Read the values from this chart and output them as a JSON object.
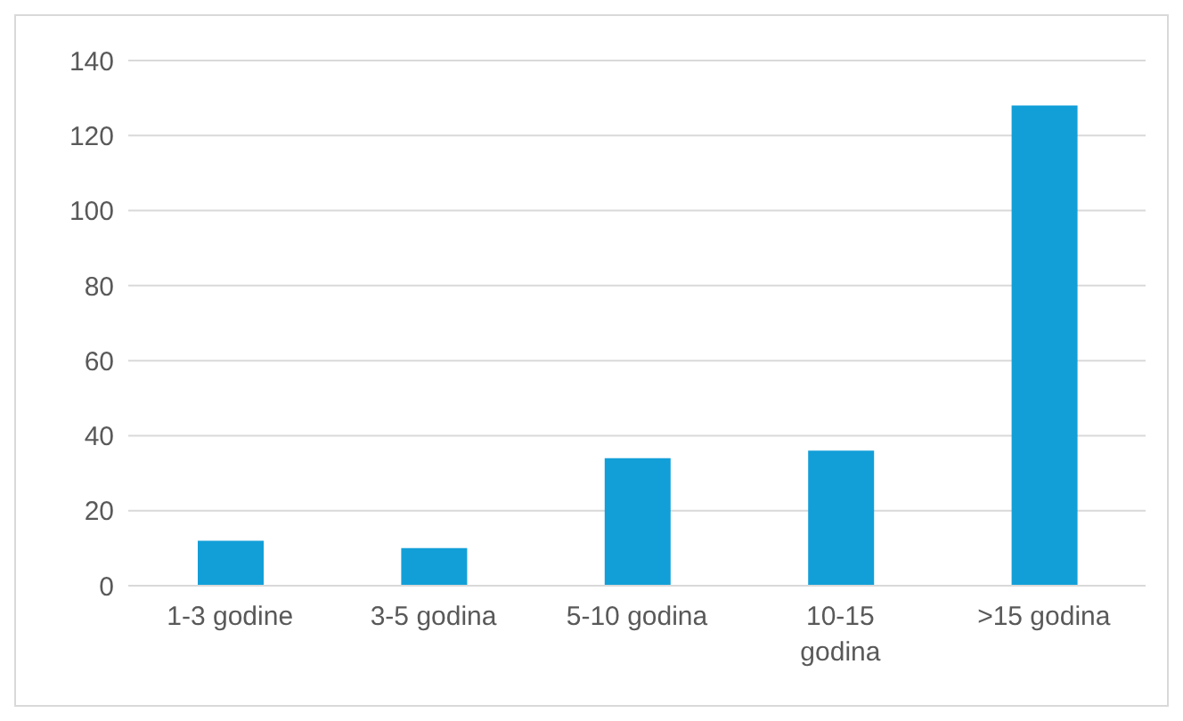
{
  "chart_data": {
    "type": "bar",
    "categories": [
      "1-3 godine",
      "3-5 godina",
      "5-10 godina",
      "10-15 godina",
      ">15 godina"
    ],
    "values": [
      12,
      10,
      34,
      36,
      128
    ],
    "color": "#129fd8",
    "ylim": [
      0,
      140
    ],
    "yticks": [
      0,
      20,
      40,
      60,
      80,
      100,
      120,
      140
    ],
    "grid": "y",
    "legend": false
  }
}
